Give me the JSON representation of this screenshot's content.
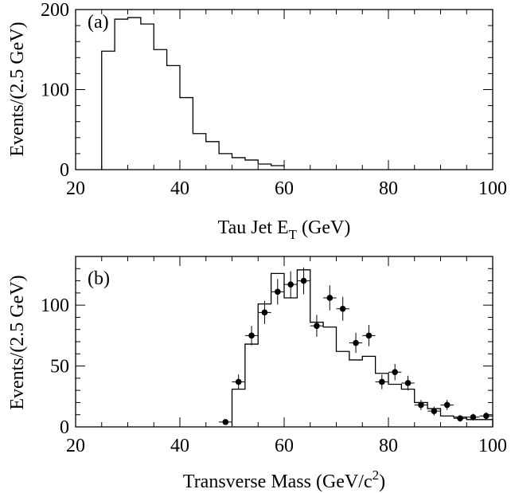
{
  "chart_data": [
    {
      "type": "histogram",
      "panel_label": "(a)",
      "xlabel": "Tau Jet E",
      "xlabel_sub": "T",
      "xlabel_tail": " (GeV)",
      "ylabel": "Events/(2.5 GeV)",
      "xlim": [
        20,
        100
      ],
      "ylim": [
        0,
        200
      ],
      "x_ticks": [
        20,
        40,
        60,
        80,
        100
      ],
      "y_ticks": [
        0,
        100,
        200
      ],
      "x_minor_step": 5,
      "y_minor_step": 20,
      "grid": false,
      "series": [
        {
          "style": "step",
          "bin_edges": [
            25,
            27.5,
            30,
            32.5,
            35,
            37.5,
            40,
            42.5,
            45,
            47.5,
            50,
            52.5,
            55,
            57.5,
            60
          ],
          "values": [
            148,
            188,
            190,
            182,
            150,
            130,
            90,
            45,
            35,
            20,
            15,
            12,
            7,
            5,
            3
          ]
        }
      ]
    },
    {
      "type": "histogram",
      "panel_label": "(b)",
      "xlabel": "Transverse Mass (GeV/c",
      "xlabel_sup": "2",
      "xlabel_tail": ")",
      "ylabel": "Events/(2.5 GeV)",
      "xlim": [
        20,
        100
      ],
      "ylim": [
        0,
        140
      ],
      "x_ticks": [
        20,
        40,
        60,
        80,
        100
      ],
      "y_ticks": [
        0,
        50,
        100
      ],
      "x_minor_step": 5,
      "y_minor_step": 10,
      "grid": false,
      "series": [
        {
          "style": "step",
          "bin_edges": [
            50,
            52.5,
            55,
            57.5,
            60,
            62.5,
            65,
            67.5,
            70,
            72.5,
            75,
            77.5,
            80,
            82.5,
            85,
            87.5,
            90,
            92.5,
            95,
            97.5,
            100
          ],
          "values": [
            31,
            68,
            101,
            126,
            106,
            129,
            86,
            82,
            62,
            55,
            58,
            44,
            35,
            31,
            20,
            15,
            9,
            8,
            6,
            6
          ]
        },
        {
          "style": "points",
          "x": [
            48.75,
            51.25,
            53.75,
            56.25,
            58.75,
            61.25,
            63.75,
            66.25,
            68.75,
            71.25,
            73.75,
            76.25,
            78.75,
            81.25,
            83.75,
            86.25,
            88.75,
            91.25,
            93.75,
            96.25,
            98.75
          ],
          "y": [
            4,
            37,
            75,
            94,
            111,
            117,
            120,
            83,
            106,
            97,
            69,
            75,
            37,
            45,
            36,
            18,
            13,
            18,
            7,
            8,
            9
          ],
          "yerr": [
            2,
            6,
            8,
            9.5,
            10.5,
            10.8,
            11,
            9,
            10.3,
            9.8,
            8.3,
            8.7,
            6,
            6.7,
            6,
            4.2,
            3.6,
            4.2,
            2.6,
            2.8,
            3
          ]
        }
      ]
    }
  ]
}
